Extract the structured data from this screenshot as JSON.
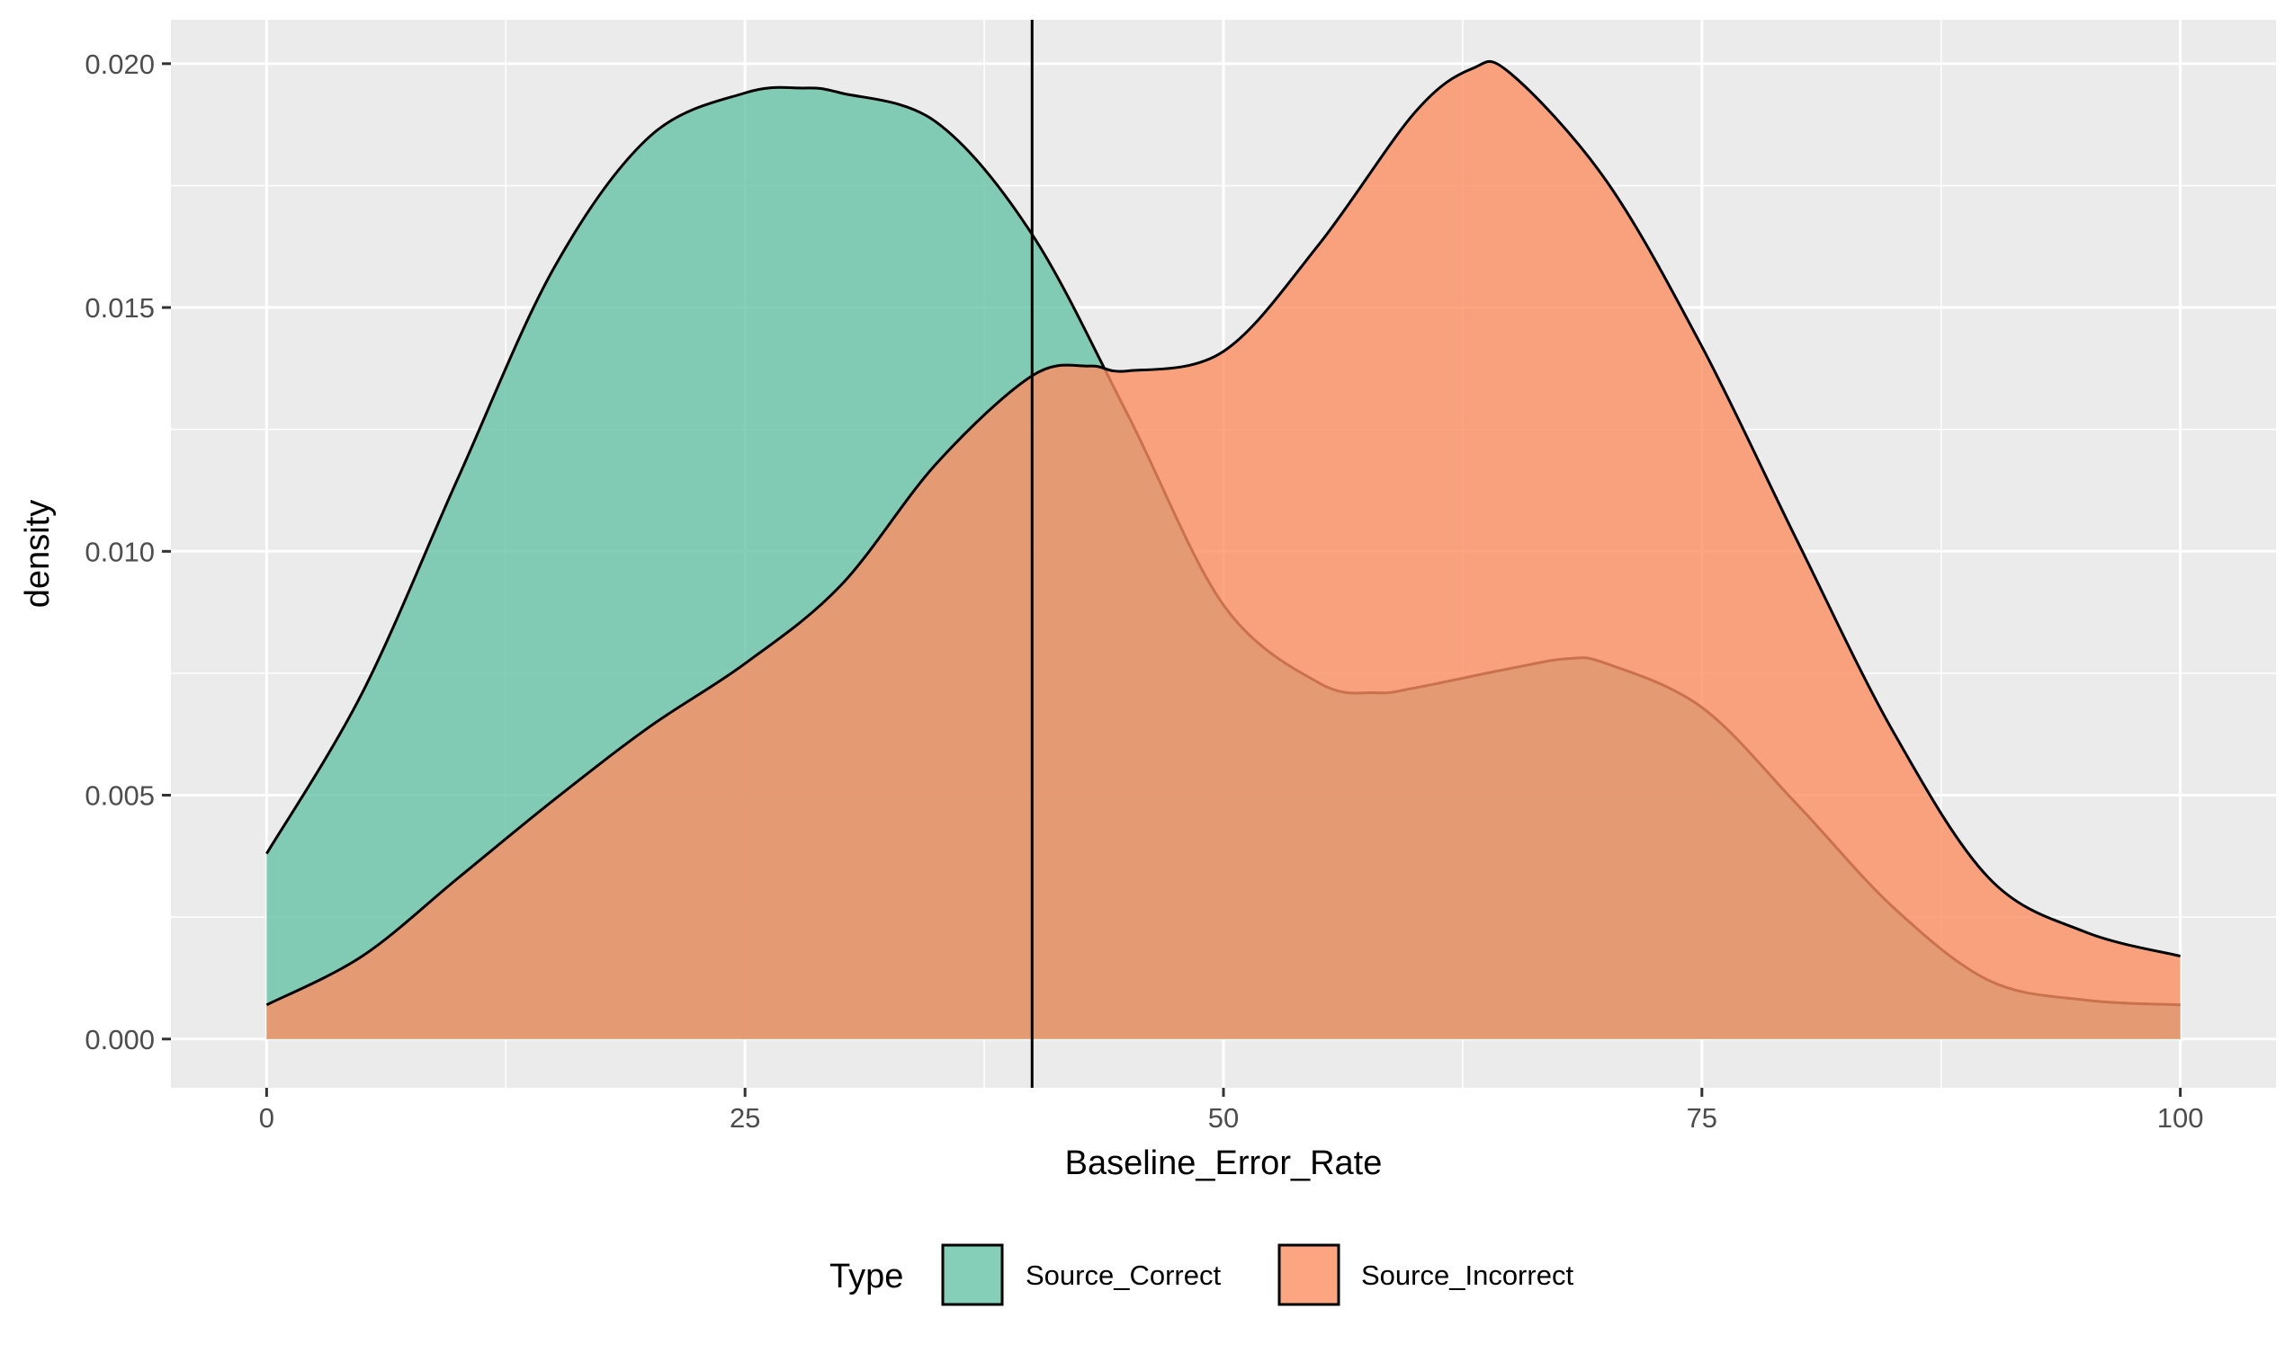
{
  "chart_data": {
    "type": "area",
    "subtype": "density",
    "title": "",
    "xlabel": "Baseline_Error_Rate",
    "ylabel": "density",
    "xlim": [
      -5,
      105
    ],
    "ylim": [
      -0.001,
      0.0209
    ],
    "x_ticks": [
      0,
      25,
      50,
      75,
      100
    ],
    "x_tick_labels": [
      "0",
      "25",
      "50",
      "75",
      "100"
    ],
    "y_ticks": [
      0.0,
      0.005,
      0.01,
      0.015,
      0.02
    ],
    "y_tick_labels": [
      "0.000",
      "0.005",
      "0.010",
      "0.015",
      "0.020"
    ],
    "grid": true,
    "legend": {
      "title": "Type",
      "position": "bottom"
    },
    "vline": {
      "x": 40
    },
    "series": [
      {
        "name": "Source_Correct",
        "color": "#66c2a5",
        "x": [
          0,
          5,
          10,
          15,
          20,
          25,
          28,
          30,
          35,
          40,
          45,
          50,
          55,
          58,
          60,
          65,
          68,
          70,
          75,
          80,
          85,
          90,
          95,
          100
        ],
        "y": [
          0.0038,
          0.0071,
          0.0115,
          0.0158,
          0.0185,
          0.0194,
          0.0195,
          0.0194,
          0.0188,
          0.0165,
          0.0128,
          0.0089,
          0.0073,
          0.0071,
          0.0072,
          0.0076,
          0.0078,
          0.0077,
          0.0068,
          0.0048,
          0.0027,
          0.0012,
          0.0008,
          0.0007
        ]
      },
      {
        "name": "Source_Incorrect",
        "color": "#fc8d62",
        "x": [
          0,
          5,
          10,
          15,
          20,
          25,
          30,
          35,
          40,
          43,
          45,
          50,
          55,
          60,
          63,
          65,
          70,
          75,
          80,
          85,
          90,
          95,
          100
        ],
        "y": [
          0.0007,
          0.0017,
          0.0033,
          0.0049,
          0.0064,
          0.0077,
          0.0093,
          0.0118,
          0.0136,
          0.0138,
          0.0137,
          0.0141,
          0.0163,
          0.019,
          0.0199,
          0.0198,
          0.0176,
          0.0142,
          0.0102,
          0.0063,
          0.0033,
          0.0022,
          0.0017
        ]
      }
    ]
  }
}
